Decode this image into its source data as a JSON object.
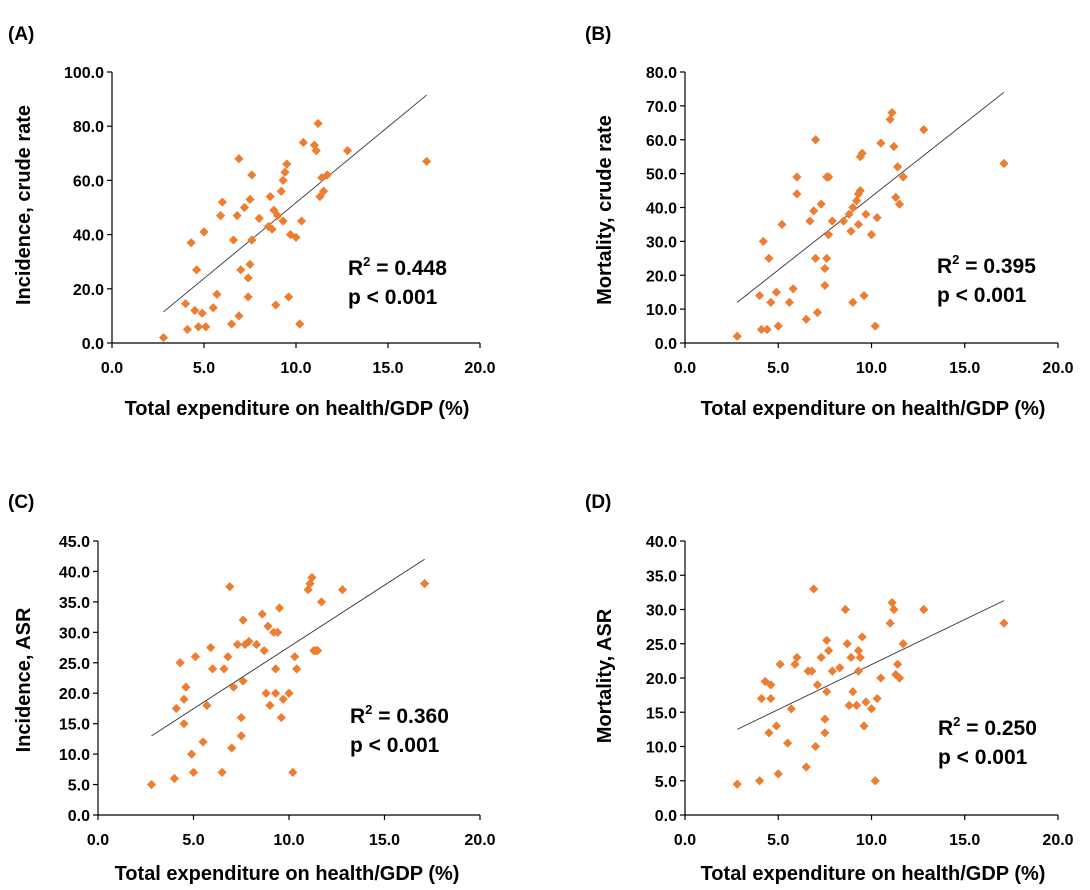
{
  "colors": {
    "marker": "#ED7D31",
    "trendline": "#333333",
    "axis": "#000000"
  },
  "chart_data": [
    {
      "type": "scatter",
      "panel_label": "(A)",
      "xlabel": "Total expenditure on health/GDP (%)",
      "ylabel": "Incidence, crude rate",
      "xlim": [
        0,
        20
      ],
      "ylim": [
        0,
        100
      ],
      "x_ticks": [
        "0.0",
        "5.0",
        "10.0",
        "15.0",
        "20.0"
      ],
      "y_ticks": [
        "0.0",
        "20.0",
        "40.0",
        "60.0",
        "80.0",
        "100.0"
      ],
      "r2_prefix": "R",
      "r2_sup": "2",
      "r2_value": " = 0.448",
      "p_text": "p < 0.001",
      "trendline": [
        [
          2.8,
          11.5
        ],
        [
          17.1,
          91.5
        ]
      ],
      "points": [
        [
          2.8,
          2
        ],
        [
          4.0,
          14.5
        ],
        [
          4.1,
          5
        ],
        [
          4.3,
          37
        ],
        [
          4.5,
          12
        ],
        [
          4.6,
          27
        ],
        [
          4.7,
          6
        ],
        [
          4.9,
          11
        ],
        [
          5.0,
          41
        ],
        [
          5.1,
          6
        ],
        [
          5.5,
          13
        ],
        [
          5.7,
          18
        ],
        [
          5.9,
          47
        ],
        [
          6.0,
          52
        ],
        [
          6.5,
          7
        ],
        [
          6.6,
          38
        ],
        [
          6.8,
          47
        ],
        [
          6.9,
          68
        ],
        [
          6.9,
          10
        ],
        [
          7.0,
          27
        ],
        [
          7.2,
          50
        ],
        [
          7.4,
          24
        ],
        [
          7.4,
          17
        ],
        [
          7.5,
          29
        ],
        [
          7.5,
          53
        ],
        [
          7.6,
          62
        ],
        [
          7.6,
          38
        ],
        [
          8.0,
          46
        ],
        [
          8.5,
          43
        ],
        [
          8.6,
          54
        ],
        [
          8.7,
          42
        ],
        [
          8.8,
          49
        ],
        [
          8.9,
          14
        ],
        [
          9.0,
          47
        ],
        [
          9.2,
          56
        ],
        [
          9.3,
          60
        ],
        [
          9.3,
          45
        ],
        [
          9.4,
          63
        ],
        [
          9.5,
          66
        ],
        [
          9.6,
          17
        ],
        [
          9.7,
          40
        ],
        [
          10.0,
          39
        ],
        [
          10.2,
          7
        ],
        [
          10.3,
          45
        ],
        [
          10.4,
          74
        ],
        [
          11.0,
          73
        ],
        [
          11.1,
          71
        ],
        [
          11.2,
          81
        ],
        [
          11.3,
          54
        ],
        [
          11.4,
          61
        ],
        [
          11.5,
          56
        ],
        [
          11.7,
          62
        ],
        [
          12.8,
          71
        ],
        [
          17.1,
          67
        ]
      ]
    },
    {
      "type": "scatter",
      "panel_label": "(B)",
      "xlabel": "Total expenditure on health/GDP (%)",
      "ylabel": "Mortality, crude rate",
      "xlim": [
        0,
        20
      ],
      "ylim": [
        0,
        80
      ],
      "x_ticks": [
        "0.0",
        "5.0",
        "10.0",
        "15.0",
        "20.0"
      ],
      "y_ticks": [
        "0.0",
        "10.0",
        "20.0",
        "30.0",
        "40.0",
        "50.0",
        "60.0",
        "70.0",
        "80.0"
      ],
      "r2_prefix": "R",
      "r2_sup": "2",
      "r2_value": " = 0.395",
      "p_text": "p < 0.001",
      "trendline": [
        [
          2.8,
          12
        ],
        [
          17.1,
          74
        ]
      ],
      "points": [
        [
          2.8,
          2
        ],
        [
          4.0,
          14
        ],
        [
          4.1,
          4
        ],
        [
          4.2,
          30
        ],
        [
          4.4,
          4
        ],
        [
          4.5,
          25
        ],
        [
          4.6,
          12
        ],
        [
          4.9,
          15
        ],
        [
          5.0,
          5
        ],
        [
          5.2,
          35
        ],
        [
          5.6,
          12
        ],
        [
          5.8,
          16
        ],
        [
          6.0,
          49
        ],
        [
          6.0,
          44
        ],
        [
          6.5,
          7
        ],
        [
          6.7,
          36
        ],
        [
          6.9,
          39
        ],
        [
          7.0,
          60
        ],
        [
          7.0,
          25
        ],
        [
          7.1,
          9
        ],
        [
          7.3,
          41
        ],
        [
          7.5,
          22
        ],
        [
          7.5,
          17
        ],
        [
          7.6,
          25
        ],
        [
          7.6,
          49
        ],
        [
          7.7,
          49
        ],
        [
          7.7,
          32
        ],
        [
          7.9,
          36
        ],
        [
          8.5,
          36
        ],
        [
          8.8,
          38
        ],
        [
          8.9,
          33
        ],
        [
          9.0,
          40
        ],
        [
          9.0,
          12
        ],
        [
          9.2,
          42
        ],
        [
          9.3,
          44
        ],
        [
          9.3,
          35
        ],
        [
          9.4,
          45
        ],
        [
          9.4,
          55
        ],
        [
          9.5,
          56
        ],
        [
          9.6,
          14
        ],
        [
          9.7,
          38
        ],
        [
          10.0,
          32
        ],
        [
          10.2,
          5
        ],
        [
          10.3,
          37
        ],
        [
          10.5,
          59
        ],
        [
          11.0,
          66
        ],
        [
          11.1,
          68
        ],
        [
          11.2,
          58
        ],
        [
          11.3,
          43
        ],
        [
          11.4,
          52
        ],
        [
          11.5,
          41
        ],
        [
          11.7,
          49
        ],
        [
          12.8,
          63
        ],
        [
          17.1,
          53
        ]
      ]
    },
    {
      "type": "scatter",
      "panel_label": "(C)",
      "xlabel": "Total expenditure on health/GDP (%)",
      "ylabel": "Incidence, ASR",
      "xlim": [
        0,
        20
      ],
      "ylim": [
        0,
        45
      ],
      "x_ticks": [
        "0.0",
        "5.0",
        "10.0",
        "15.0",
        "20.0"
      ],
      "y_ticks": [
        "0.0",
        "5.0",
        "10.0",
        "15.0",
        "20.0",
        "25.0",
        "30.0",
        "35.0",
        "40.0",
        "45.0"
      ],
      "r2_prefix": "R",
      "r2_sup": "2",
      "r2_value": " = 0.360",
      "p_text": "p < 0.001",
      "trendline": [
        [
          2.8,
          13
        ],
        [
          17.1,
          42
        ]
      ],
      "points": [
        [
          2.8,
          5
        ],
        [
          4.0,
          6
        ],
        [
          4.1,
          17.5
        ],
        [
          4.3,
          25
        ],
        [
          4.5,
          15
        ],
        [
          4.5,
          19
        ],
        [
          4.6,
          21
        ],
        [
          4.9,
          10
        ],
        [
          5.0,
          7
        ],
        [
          5.1,
          26
        ],
        [
          5.5,
          12
        ],
        [
          5.7,
          18
        ],
        [
          5.9,
          27.5
        ],
        [
          6.0,
          24
        ],
        [
          6.5,
          7
        ],
        [
          6.6,
          24
        ],
        [
          6.8,
          26
        ],
        [
          6.9,
          37.5
        ],
        [
          7.0,
          11
        ],
        [
          7.1,
          21
        ],
        [
          7.3,
          28
        ],
        [
          7.5,
          16
        ],
        [
          7.5,
          13
        ],
        [
          7.6,
          22
        ],
        [
          7.6,
          32
        ],
        [
          7.7,
          28
        ],
        [
          7.9,
          28.5
        ],
        [
          8.3,
          28
        ],
        [
          8.6,
          33
        ],
        [
          8.7,
          27
        ],
        [
          8.8,
          20
        ],
        [
          8.9,
          31
        ],
        [
          9.0,
          18
        ],
        [
          9.2,
          30
        ],
        [
          9.3,
          24
        ],
        [
          9.3,
          20
        ],
        [
          9.4,
          30
        ],
        [
          9.5,
          34
        ],
        [
          9.6,
          16
        ],
        [
          9.7,
          19
        ],
        [
          10.0,
          20
        ],
        [
          10.2,
          7
        ],
        [
          10.3,
          26
        ],
        [
          10.4,
          24
        ],
        [
          11.0,
          37
        ],
        [
          11.1,
          38
        ],
        [
          11.2,
          39
        ],
        [
          11.3,
          27
        ],
        [
          11.4,
          27
        ],
        [
          11.5,
          27
        ],
        [
          11.7,
          35
        ],
        [
          12.8,
          37
        ],
        [
          17.1,
          38
        ]
      ]
    },
    {
      "type": "scatter",
      "panel_label": "(D)",
      "xlabel": "Total expenditure on health/GDP (%)",
      "ylabel": "Mortality, ASR",
      "xlim": [
        0,
        20
      ],
      "ylim": [
        0,
        40
      ],
      "x_ticks": [
        "0.0",
        "5.0",
        "10.0",
        "15.0",
        "20.0"
      ],
      "y_ticks": [
        "0.0",
        "5.0",
        "10.0",
        "15.0",
        "20.0",
        "25.0",
        "30.0",
        "35.0",
        "40.0"
      ],
      "r2_prefix": "R",
      "r2_sup": "2",
      "r2_value": " = 0.250",
      "p_text": "p < 0.001",
      "trendline": [
        [
          2.8,
          12.5
        ],
        [
          17.1,
          31.3
        ]
      ],
      "points": [
        [
          2.8,
          4.5
        ],
        [
          4.0,
          5
        ],
        [
          4.1,
          17
        ],
        [
          4.3,
          19.5
        ],
        [
          4.5,
          12
        ],
        [
          4.6,
          17
        ],
        [
          4.6,
          19
        ],
        [
          4.9,
          13
        ],
        [
          5.0,
          6
        ],
        [
          5.1,
          22
        ],
        [
          5.5,
          10.5
        ],
        [
          5.7,
          15.5
        ],
        [
          5.9,
          22
        ],
        [
          6.0,
          23
        ],
        [
          6.5,
          7
        ],
        [
          6.6,
          21
        ],
        [
          6.8,
          21
        ],
        [
          6.9,
          33
        ],
        [
          7.0,
          10
        ],
        [
          7.1,
          19
        ],
        [
          7.3,
          23
        ],
        [
          7.5,
          14
        ],
        [
          7.5,
          12
        ],
        [
          7.6,
          18
        ],
        [
          7.6,
          25.5
        ],
        [
          7.7,
          24
        ],
        [
          7.9,
          21
        ],
        [
          8.3,
          21.5
        ],
        [
          8.6,
          30
        ],
        [
          8.7,
          25
        ],
        [
          8.8,
          16
        ],
        [
          8.9,
          23
        ],
        [
          9.0,
          18
        ],
        [
          9.2,
          16
        ],
        [
          9.3,
          24
        ],
        [
          9.3,
          21
        ],
        [
          9.4,
          23
        ],
        [
          9.5,
          26
        ],
        [
          9.6,
          13
        ],
        [
          9.7,
          16.5
        ],
        [
          10.0,
          15.5
        ],
        [
          10.2,
          5
        ],
        [
          10.3,
          17
        ],
        [
          10.5,
          20
        ],
        [
          11.0,
          28
        ],
        [
          11.1,
          31
        ],
        [
          11.2,
          30
        ],
        [
          11.3,
          20.5
        ],
        [
          11.4,
          22
        ],
        [
          11.5,
          20
        ],
        [
          11.7,
          25
        ],
        [
          12.8,
          30
        ],
        [
          17.1,
          28
        ]
      ]
    }
  ]
}
